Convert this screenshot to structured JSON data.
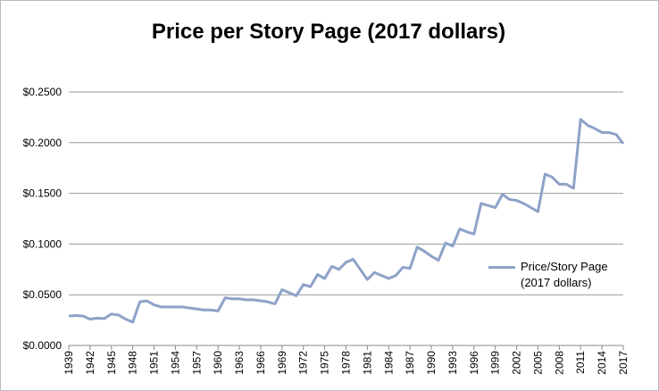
{
  "chart_data": {
    "type": "line",
    "title": "Price per Story Page (2017 dollars)",
    "x": [
      1939,
      1940,
      1941,
      1942,
      1943,
      1944,
      1945,
      1946,
      1947,
      1948,
      1949,
      1950,
      1951,
      1952,
      1953,
      1954,
      1955,
      1956,
      1957,
      1958,
      1959,
      1960,
      1961,
      1962,
      1963,
      1964,
      1965,
      1966,
      1967,
      1968,
      1969,
      1970,
      1971,
      1972,
      1973,
      1974,
      1975,
      1976,
      1977,
      1978,
      1979,
      1980,
      1981,
      1982,
      1983,
      1984,
      1985,
      1986,
      1987,
      1988,
      1989,
      1990,
      1991,
      1992,
      1993,
      1994,
      1995,
      1996,
      1997,
      1998,
      1999,
      2000,
      2001,
      2002,
      2003,
      2004,
      2005,
      2006,
      2007,
      2008,
      2009,
      2010,
      2011,
      2012,
      2013,
      2014,
      2015,
      2016,
      2017
    ],
    "series": [
      {
        "name": "Price/Story Page (2017 dollars)",
        "color": "#8ea2c8",
        "values": [
          0.029,
          0.0295,
          0.029,
          0.026,
          0.027,
          0.0265,
          0.031,
          0.03,
          0.026,
          0.023,
          0.043,
          0.044,
          0.04,
          0.038,
          0.038,
          0.038,
          0.038,
          0.037,
          0.036,
          0.035,
          0.035,
          0.034,
          0.047,
          0.046,
          0.046,
          0.045,
          0.045,
          0.044,
          0.043,
          0.041,
          0.055,
          0.052,
          0.049,
          0.06,
          0.058,
          0.07,
          0.066,
          0.078,
          0.075,
          0.082,
          0.085,
          0.075,
          0.065,
          0.072,
          0.069,
          0.066,
          0.069,
          0.077,
          0.076,
          0.097,
          0.093,
          0.088,
          0.084,
          0.101,
          0.098,
          0.115,
          0.112,
          0.11,
          0.14,
          0.138,
          0.136,
          0.149,
          0.144,
          0.143,
          0.14,
          0.136,
          0.132,
          0.169,
          0.166,
          0.159,
          0.159,
          0.155,
          0.223,
          0.217,
          0.214,
          0.21,
          0.21,
          0.208,
          0.199
        ]
      }
    ],
    "xlim": [
      1939,
      2017
    ],
    "xticks": [
      1939,
      1942,
      1945,
      1948,
      1951,
      1954,
      1957,
      1960,
      1963,
      1966,
      1969,
      1972,
      1975,
      1978,
      1981,
      1984,
      1987,
      1990,
      1993,
      1996,
      1999,
      2002,
      2005,
      2008,
      2011,
      2014,
      2017
    ],
    "ylim": [
      0,
      0.25
    ],
    "yticks": [
      {
        "value": 0,
        "label": "$0.0000"
      },
      {
        "value": 0.05,
        "label": "$0.0500"
      },
      {
        "value": 0.1,
        "label": "$0.1000"
      },
      {
        "value": 0.15,
        "label": "$0.1500"
      },
      {
        "value": 0.2,
        "label": "$0.2000"
      },
      {
        "value": 0.25,
        "label": "$0.2500"
      }
    ],
    "grid": true,
    "legend": "right"
  }
}
